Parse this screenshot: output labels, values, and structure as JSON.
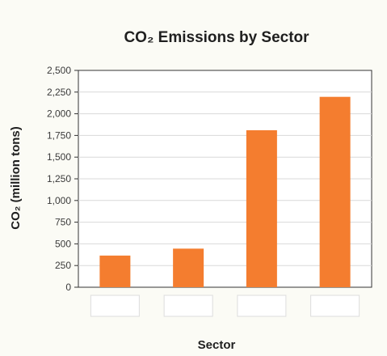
{
  "chart_data": {
    "type": "bar",
    "title": "CO₂ Emissions by Sector",
    "xlabel": "Sector",
    "ylabel": "CO₂ (million tons)",
    "categories": [
      "",
      "",
      "",
      ""
    ],
    "values": [
      365,
      445,
      1810,
      2195
    ],
    "ylim": [
      0,
      2500
    ],
    "yticks": [
      0,
      250,
      500,
      750,
      1000,
      1250,
      1500,
      1750,
      2000,
      2250,
      2500
    ],
    "ytick_labels": [
      "0",
      "250",
      "500",
      "750",
      "1,000",
      "1,250",
      "1,500",
      "1,750",
      "2,000",
      "2,250",
      "2,500"
    ],
    "bar_color": "#f47d2f",
    "grid": true
  }
}
